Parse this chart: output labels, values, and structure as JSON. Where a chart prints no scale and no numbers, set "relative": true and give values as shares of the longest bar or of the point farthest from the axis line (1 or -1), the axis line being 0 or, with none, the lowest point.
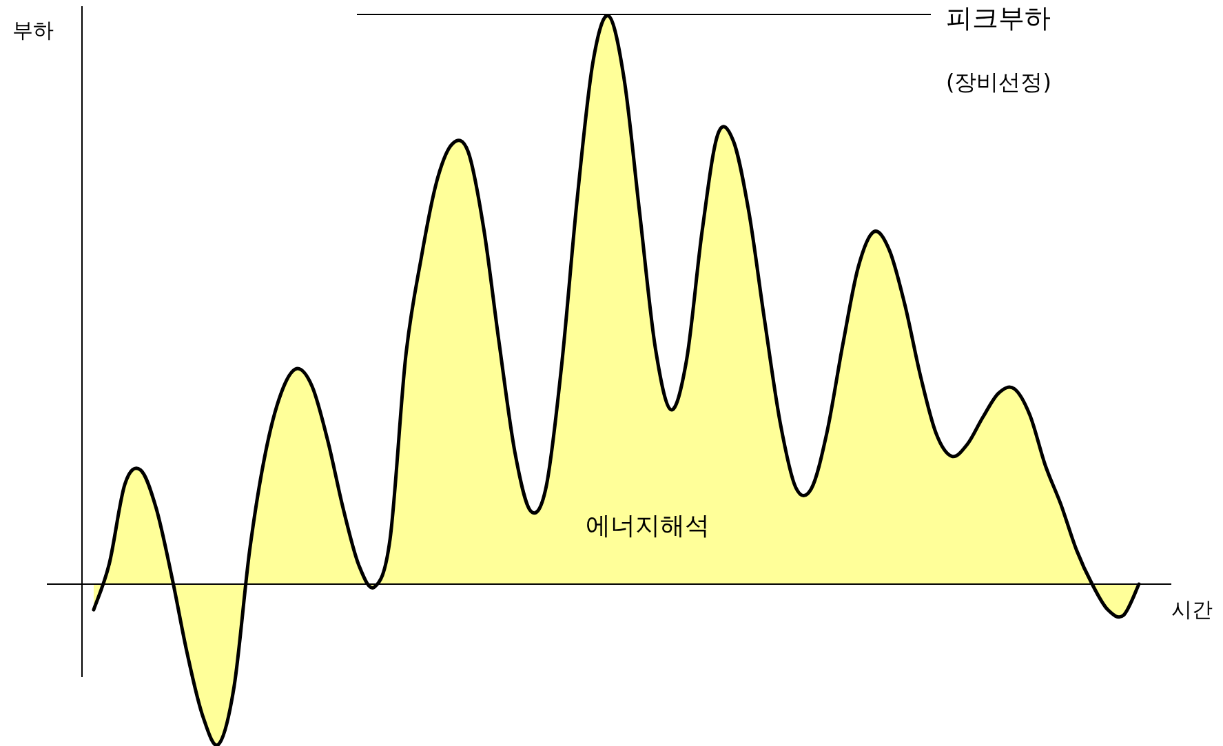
{
  "chart_data": {
    "type": "area",
    "relative": true,
    "xlabel": "시간",
    "ylabel": "부하",
    "color": "#ffff99",
    "categories": [
      null,
      null,
      null,
      null,
      null,
      null,
      null,
      null,
      null,
      null,
      null,
      null,
      null,
      null,
      null,
      null,
      null,
      null,
      null,
      null,
      null,
      null,
      null,
      null,
      null,
      null,
      null,
      null,
      null,
      null,
      null,
      null,
      null,
      null,
      null,
      null,
      null,
      null,
      null,
      null,
      null,
      null,
      null,
      null,
      null,
      null,
      null,
      null,
      null,
      null,
      null,
      null,
      null,
      null,
      null,
      null,
      null,
      null,
      null,
      null,
      null,
      null,
      null,
      null,
      null,
      null,
      null,
      null
    ],
    "values": [
      -0.045,
      0.036,
      0.176,
      0.201,
      0.134,
      0.014,
      -0.123,
      -0.233,
      -0.282,
      -0.18,
      0.06,
      0.23,
      0.335,
      0.379,
      0.348,
      0.253,
      0.132,
      0.033,
      -0.005,
      0.08,
      0.4,
      0.575,
      0.71,
      0.775,
      0.761,
      0.626,
      0.422,
      0.232,
      0.129,
      0.171,
      0.387,
      0.68,
      0.918,
      1,
      0.889,
      0.652,
      0.416,
      0.307,
      0.394,
      0.621,
      0.791,
      0.78,
      0.654,
      0.465,
      0.285,
      0.17,
      0.168,
      0.267,
      0.419,
      0.557,
      0.62,
      0.588,
      0.491,
      0.366,
      0.265,
      0.225,
      0.246,
      0.294,
      0.336,
      0.344,
      0.298,
      0.209,
      0.14,
      0.06,
      0,
      -0.045,
      -0.055,
      0
    ],
    "ref_lines": [
      {
        "axis": "y",
        "value": 1,
        "label": "피크부하"
      }
    ],
    "annotations": [
      "(장비선정)",
      "에너지해석"
    ]
  }
}
